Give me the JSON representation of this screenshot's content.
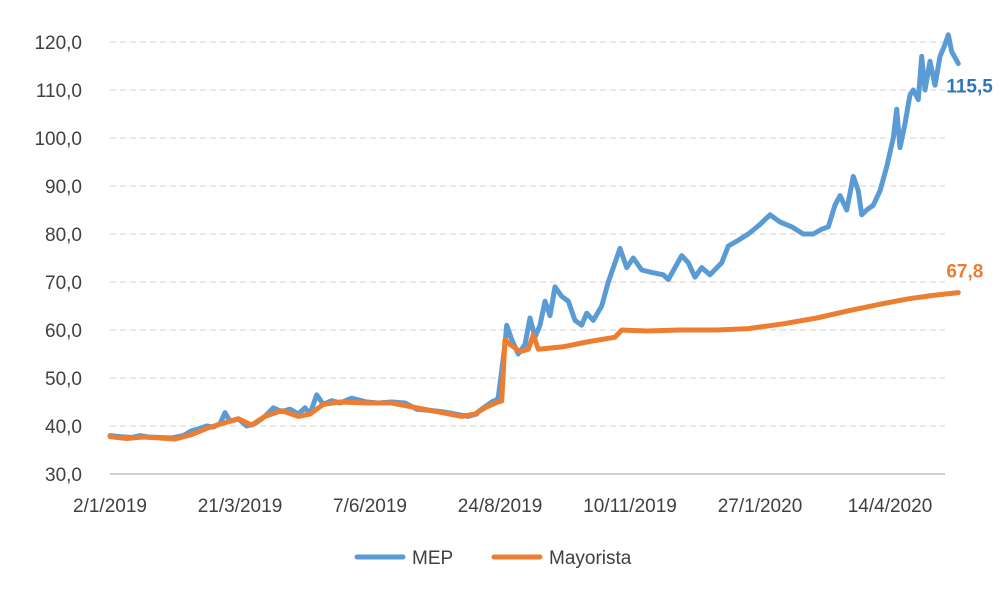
{
  "chart_data": {
    "type": "line",
    "title": "",
    "xlabel": "",
    "ylabel": "",
    "ylim": [
      30,
      120
    ],
    "yticks": [
      30,
      40,
      50,
      60,
      70,
      80,
      90,
      100,
      110,
      120
    ],
    "ytick_labels": [
      "30,0",
      "40,0",
      "50,0",
      "60,0",
      "70,0",
      "80,0",
      "90,0",
      "100,0",
      "110,0",
      "120,0"
    ],
    "xlim": [
      "2019-01-02",
      "2020-06-01"
    ],
    "xticks": [
      "2019-01-02",
      "2019-03-21",
      "2019-06-07",
      "2019-08-24",
      "2019-11-10",
      "2020-01-27",
      "2020-04-14"
    ],
    "xtick_labels": [
      "2/1/2019",
      "21/3/2019",
      "7/6/2019",
      "24/8/2019",
      "10/11/2019",
      "27/1/2020",
      "14/4/2020"
    ],
    "grid": "horizontal dashed",
    "legend_position": "bottom",
    "series": [
      {
        "name": "MEP",
        "color": "#5b9bd5",
        "end_label": "115,5",
        "end_label_color": "#2e75b6",
        "points": [
          [
            "2019-01-02",
            38.0
          ],
          [
            "2019-01-08",
            37.8
          ],
          [
            "2019-01-15",
            37.6
          ],
          [
            "2019-01-20",
            38.0
          ],
          [
            "2019-01-25",
            37.7
          ],
          [
            "2019-02-01",
            37.6
          ],
          [
            "2019-02-08",
            37.5
          ],
          [
            "2019-02-15",
            38.0
          ],
          [
            "2019-02-20",
            39.0
          ],
          [
            "2019-02-25",
            39.5
          ],
          [
            "2019-03-01",
            40.0
          ],
          [
            "2019-03-05",
            39.8
          ],
          [
            "2019-03-09",
            40.5
          ],
          [
            "2019-03-12",
            42.8
          ],
          [
            "2019-03-15",
            41.0
          ],
          [
            "2019-03-20",
            41.5
          ],
          [
            "2019-03-25",
            40.0
          ],
          [
            "2019-03-30",
            40.5
          ],
          [
            "2019-04-05",
            42.0
          ],
          [
            "2019-04-10",
            43.8
          ],
          [
            "2019-04-15",
            43.0
          ],
          [
            "2019-04-20",
            43.5
          ],
          [
            "2019-04-25",
            42.5
          ],
          [
            "2019-04-29",
            43.8
          ],
          [
            "2019-05-02",
            42.5
          ],
          [
            "2019-05-06",
            46.5
          ],
          [
            "2019-05-10",
            44.5
          ],
          [
            "2019-05-15",
            45.3
          ],
          [
            "2019-05-20",
            44.8
          ],
          [
            "2019-05-27",
            45.8
          ],
          [
            "2019-06-05",
            45.0
          ],
          [
            "2019-06-12",
            44.8
          ],
          [
            "2019-06-20",
            45.0
          ],
          [
            "2019-06-28",
            44.8
          ],
          [
            "2019-07-05",
            43.5
          ],
          [
            "2019-07-12",
            43.3
          ],
          [
            "2019-07-20",
            43.0
          ],
          [
            "2019-07-28",
            42.5
          ],
          [
            "2019-08-05",
            42.0
          ],
          [
            "2019-08-10",
            42.5
          ],
          [
            "2019-08-11",
            43.0
          ],
          [
            "2019-08-15",
            44.0
          ],
          [
            "2019-08-19",
            45.0
          ],
          [
            "2019-08-22",
            45.5
          ],
          [
            "2019-08-23",
            46.0
          ],
          [
            "2019-08-27",
            57.0
          ],
          [
            "2019-08-28",
            61.0
          ],
          [
            "2019-08-31",
            58.0
          ],
          [
            "2019-09-04",
            55.0
          ],
          [
            "2019-09-08",
            57.0
          ],
          [
            "2019-09-11",
            62.5
          ],
          [
            "2019-09-14",
            58.5
          ],
          [
            "2019-09-17",
            61.0
          ],
          [
            "2019-09-20",
            66.0
          ],
          [
            "2019-09-23",
            63.0
          ],
          [
            "2019-09-26",
            69.0
          ],
          [
            "2019-09-30",
            67.0
          ],
          [
            "2019-10-04",
            66.0
          ],
          [
            "2019-10-08",
            62.0
          ],
          [
            "2019-10-12",
            61.0
          ],
          [
            "2019-10-15",
            63.5
          ],
          [
            "2019-10-19",
            62.0
          ],
          [
            "2019-10-24",
            65.0
          ],
          [
            "2019-10-28",
            70.0
          ],
          [
            "2019-11-01",
            74.0
          ],
          [
            "2019-11-04",
            77.0
          ],
          [
            "2019-11-08",
            73.0
          ],
          [
            "2019-11-12",
            75.0
          ],
          [
            "2019-11-17",
            72.5
          ],
          [
            "2019-11-23",
            72.0
          ],
          [
            "2019-11-30",
            71.5
          ],
          [
            "2019-12-03",
            70.5
          ],
          [
            "2019-12-07",
            73.0
          ],
          [
            "2019-12-11",
            75.5
          ],
          [
            "2019-12-15",
            74.0
          ],
          [
            "2019-12-19",
            71.0
          ],
          [
            "2019-12-23",
            73.0
          ],
          [
            "2019-12-28",
            71.5
          ],
          [
            "2020-01-04",
            74.0
          ],
          [
            "2020-01-08",
            77.5
          ],
          [
            "2020-01-13",
            78.5
          ],
          [
            "2020-01-20",
            80.0
          ],
          [
            "2020-01-27",
            82.0
          ],
          [
            "2020-02-02",
            84.0
          ],
          [
            "2020-02-08",
            82.5
          ],
          [
            "2020-02-15",
            81.5
          ],
          [
            "2020-02-22",
            80.0
          ],
          [
            "2020-02-28",
            80.0
          ],
          [
            "2020-03-04",
            81.0
          ],
          [
            "2020-03-08",
            81.5
          ],
          [
            "2020-03-12",
            86.0
          ],
          [
            "2020-03-15",
            88.0
          ],
          [
            "2020-03-19",
            85.0
          ],
          [
            "2020-03-23",
            92.0
          ],
          [
            "2020-03-26",
            89.0
          ],
          [
            "2020-03-28",
            84.0
          ],
          [
            "2020-03-31",
            85.0
          ],
          [
            "2020-04-04",
            86.0
          ],
          [
            "2020-04-08",
            89.0
          ],
          [
            "2020-04-12",
            94.0
          ],
          [
            "2020-04-16",
            100.0
          ],
          [
            "2020-04-18",
            106.0
          ],
          [
            "2020-04-20",
            98.0
          ],
          [
            "2020-04-23",
            103.0
          ],
          [
            "2020-04-26",
            109.0
          ],
          [
            "2020-04-28",
            110.0
          ],
          [
            "2020-05-01",
            108.0
          ],
          [
            "2020-05-03",
            117.0
          ],
          [
            "2020-05-05",
            110.0
          ],
          [
            "2020-05-08",
            116.0
          ],
          [
            "2020-05-11",
            111.0
          ],
          [
            "2020-05-14",
            117.0
          ],
          [
            "2020-05-17",
            119.5
          ],
          [
            "2020-05-19",
            121.5
          ],
          [
            "2020-05-21",
            118.0
          ],
          [
            "2020-05-25",
            115.5
          ]
        ]
      },
      {
        "name": "Mayorista",
        "color": "#ed7d31",
        "end_label": "67,8",
        "end_label_color": "#ed7d31",
        "points": [
          [
            "2019-01-02",
            37.8
          ],
          [
            "2019-01-12",
            37.4
          ],
          [
            "2019-01-22",
            37.7
          ],
          [
            "2019-02-01",
            37.5
          ],
          [
            "2019-02-10",
            37.3
          ],
          [
            "2019-02-20",
            38.2
          ],
          [
            "2019-03-01",
            39.5
          ],
          [
            "2019-03-10",
            40.5
          ],
          [
            "2019-03-20",
            41.5
          ],
          [
            "2019-03-28",
            40.2
          ],
          [
            "2019-04-05",
            42.0
          ],
          [
            "2019-04-15",
            43.2
          ],
          [
            "2019-04-25",
            42.0
          ],
          [
            "2019-05-02",
            42.5
          ],
          [
            "2019-05-10",
            44.5
          ],
          [
            "2019-05-20",
            45.0
          ],
          [
            "2019-06-05",
            44.8
          ],
          [
            "2019-06-20",
            44.8
          ],
          [
            "2019-07-05",
            43.8
          ],
          [
            "2019-07-20",
            42.8
          ],
          [
            "2019-08-01",
            42.0
          ],
          [
            "2019-08-09",
            42.5
          ],
          [
            "2019-08-16",
            44.0
          ],
          [
            "2019-08-23",
            45.0
          ],
          [
            "2019-08-25",
            45.2
          ],
          [
            "2019-08-27",
            58.0
          ],
          [
            "2019-08-30",
            57.0
          ],
          [
            "2019-09-05",
            55.5
          ],
          [
            "2019-09-10",
            56.0
          ],
          [
            "2019-09-13",
            59.0
          ],
          [
            "2019-09-16",
            56.0
          ],
          [
            "2019-10-01",
            56.5
          ],
          [
            "2019-10-15",
            57.5
          ],
          [
            "2019-11-01",
            58.5
          ],
          [
            "2019-11-05",
            60.0
          ],
          [
            "2019-11-20",
            59.8
          ],
          [
            "2019-12-10",
            60.0
          ],
          [
            "2020-01-01",
            60.0
          ],
          [
            "2020-01-20",
            60.3
          ],
          [
            "2020-02-10",
            61.3
          ],
          [
            "2020-03-01",
            62.5
          ],
          [
            "2020-03-20",
            64.0
          ],
          [
            "2020-04-10",
            65.5
          ],
          [
            "2020-04-25",
            66.5
          ],
          [
            "2020-05-10",
            67.2
          ],
          [
            "2020-05-25",
            67.8
          ]
        ]
      }
    ]
  }
}
